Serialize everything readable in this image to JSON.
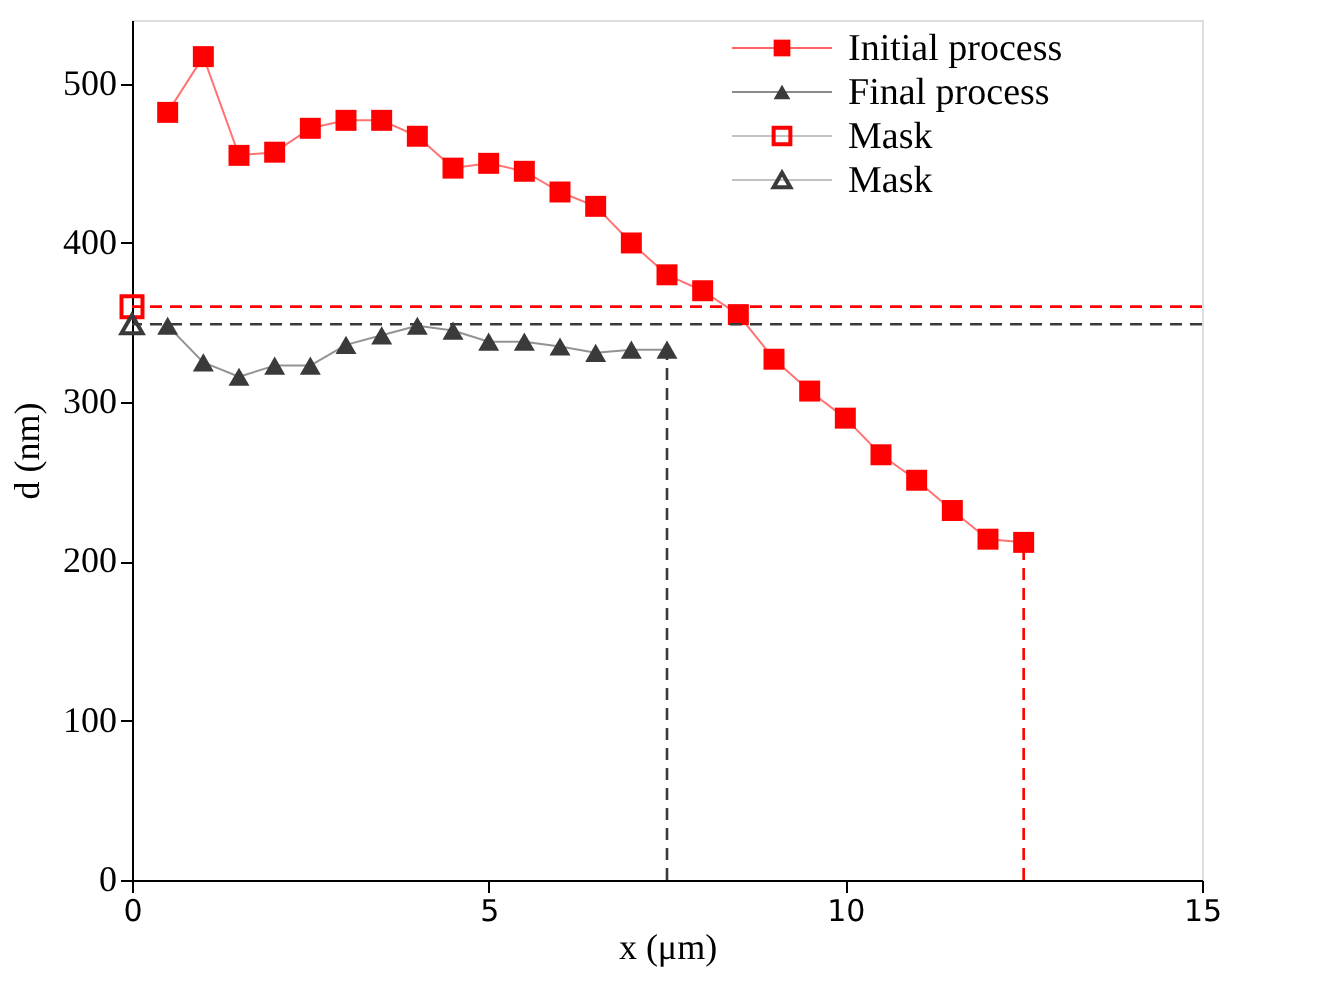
{
  "chart_data": {
    "type": "line",
    "xlabel": "x (μm)",
    "ylabel": "d (nm)",
    "xlim": [
      0,
      15
    ],
    "xticks": [
      0,
      5,
      10,
      15
    ],
    "ylim": [
      0,
      540
    ],
    "yticks": [
      0,
      100,
      200,
      300,
      400,
      500
    ],
    "grid": false,
    "legend": "top right",
    "series": [
      {
        "name": "Initial process",
        "color": "#ff0000",
        "marker": "square",
        "x": [
          0.5,
          1,
          1.5,
          2,
          2.5,
          3,
          3.5,
          4,
          4.5,
          5,
          5.5,
          6,
          6.5,
          7,
          7.5,
          8,
          8.5,
          9,
          9.5,
          10,
          10.5,
          11,
          11.5,
          12,
          12.5
        ],
        "values": [
          482,
          517,
          455,
          457,
          472,
          477,
          477,
          467,
          447,
          450,
          445,
          432,
          423,
          400,
          380,
          370,
          355,
          327,
          307,
          290,
          267,
          251,
          232,
          214,
          212
        ]
      },
      {
        "name": "Final process",
        "color": "#3a3a3a",
        "marker": "triangle",
        "x": [
          0.5,
          1,
          1.5,
          2,
          2.5,
          3,
          3.5,
          4,
          4.5,
          5,
          5.5,
          6,
          6.5,
          7,
          7.5
        ],
        "values": [
          348,
          325,
          316,
          323,
          323,
          336,
          342,
          348,
          345,
          338,
          338,
          335,
          331,
          333,
          333
        ]
      },
      {
        "name": "Mask",
        "color": "#ff0000",
        "type": "scatter",
        "marker": "square",
        "x": [
          0
        ],
        "values": [
          360
        ]
      },
      {
        "name": "Mask",
        "color": "#3a3a3a",
        "type": "scatter",
        "marker": "triangle",
        "x": [
          0
        ],
        "values": [
          349
        ]
      },
      {
        "color": "#3a3a3a",
        "marker": "none",
        "line_style": "dashed",
        "x": [
          7.5,
          7.5
        ],
        "values": [
          0,
          333
        ]
      },
      {
        "color": "#ff0000",
        "marker": "none",
        "line_style": "dashed",
        "x": [
          12.5,
          12.5
        ],
        "values": [
          0,
          212
        ]
      }
    ],
    "ref_lines": [
      {
        "axis": "y",
        "value": 360,
        "color": "#ff0000",
        "line_style": "dashed"
      },
      {
        "axis": "y",
        "value": 349,
        "color": "#3a3a3a",
        "line_style": "dashed"
      }
    ]
  }
}
